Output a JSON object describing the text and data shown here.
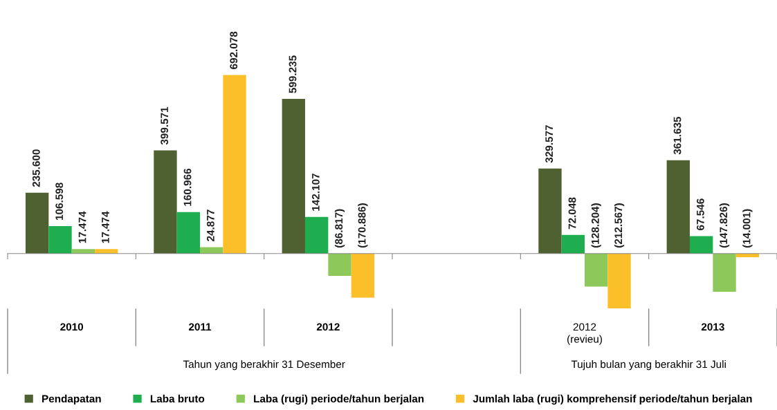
{
  "chart_data": {
    "type": "bar",
    "categories": [
      "2010",
      "2011",
      "2012",
      null,
      "2012\n(revieu)",
      "2013"
    ],
    "series": [
      {
        "name": "Pendapatan",
        "color": "#4f6130",
        "values": [
          235600,
          399571,
          599235,
          null,
          329577,
          361635
        ],
        "value_labels": [
          "235.600",
          "399.571",
          "599.235",
          null,
          "329.577",
          "361.635"
        ]
      },
      {
        "name": "Laba bruto",
        "color": "#1fae4f",
        "values": [
          106598,
          160966,
          142107,
          null,
          72048,
          67546
        ],
        "value_labels": [
          "106.598",
          "160.966",
          "142.107",
          null,
          "72.048",
          "67.546"
        ]
      },
      {
        "name": "Laba (rugi) periode/tahun berjalan",
        "color": "#8dc95a",
        "values": [
          17474,
          24877,
          -86817,
          null,
          -128204,
          -147826
        ],
        "value_labels": [
          "17.474",
          "24.877",
          "(86.817)",
          null,
          "(128.204)",
          "(147.826)"
        ]
      },
      {
        "name": "Jumlah laba (rugi) komprehensif periode/tahun berjalan",
        "color": "#fbbf2a",
        "values": [
          17474,
          692078,
          -170886,
          null,
          -212567,
          -14001
        ],
        "value_labels": [
          "17.474",
          "692.078",
          "(170.886)",
          null,
          "(212.567)",
          "(14.001)"
        ]
      }
    ],
    "annotations": [
      "Tahun yang berakhir 31 Desember",
      "Tujuh bulan yang berakhir 31 Juli"
    ],
    "grid": false,
    "legend": "bottom"
  }
}
